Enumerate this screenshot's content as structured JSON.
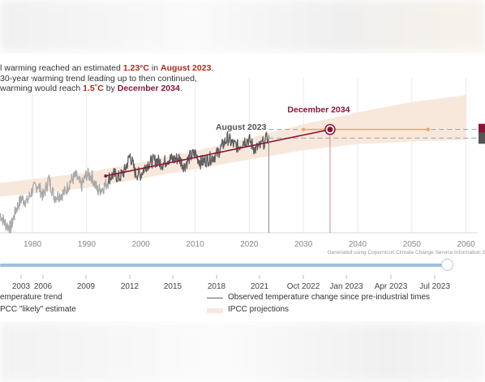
{
  "intro": {
    "line1_a": "l warming reached an estimated ",
    "line1_value": "1.23°C",
    "line1_b": " in ",
    "line1_date": "August 2023",
    "line1_c": ".",
    "line2": "30-year warming trend leading up to then continued,",
    "line3_a": " warming would reach ",
    "line3_value": "1.5˚C",
    "line3_b": " by ",
    "line3_date": "December 2034",
    "line3_c": "."
  },
  "annotations": {
    "august_label": "August 2023",
    "december_label": "December 2034",
    "attribution": "Generated using Copernicus Climate Change Service Information 2"
  },
  "colors": {
    "observed": "#5f5f5f",
    "observed_pre": "#a9a9a9",
    "trend": "#8a1538",
    "band": "#f8e8dc",
    "forecast": "#f0a860",
    "accent_dark": "#8a1538"
  },
  "date_slider": {
    "labels": [
      "2003",
      "2006",
      "2009",
      "2012",
      "2015",
      "2018",
      "2021",
      "Oct 2022",
      "Jan 2023",
      "Apr 2023",
      "Jul 2023"
    ],
    "value_fraction": 1.0
  },
  "legend": {
    "trend": "emperature trend",
    "likely": "PCC \"likely\" estimate",
    "observed": "Observed temperature change since pre-industrial times",
    "projections": "IPCC projections"
  },
  "chart_data": {
    "type": "line",
    "x_axis": {
      "range": [
        1974,
        2062
      ],
      "ticks": [
        1980,
        1990,
        2000,
        2010,
        2020,
        2030,
        2040,
        2050,
        2060
      ]
    },
    "y_axis": {
      "range": [
        0.3,
        2.1
      ],
      "grid": true
    },
    "series": [
      {
        "role": "observed-before-1994",
        "x": [
          1974,
          1975,
          1976,
          1977,
          1978,
          1979,
          1980,
          1981,
          1982,
          1983,
          1984,
          1985,
          1986,
          1987,
          1988,
          1989,
          1990,
          1991,
          1992,
          1993,
          1994
        ],
        "y": [
          0.52,
          0.4,
          0.36,
          0.58,
          0.7,
          0.66,
          0.8,
          0.86,
          0.72,
          0.93,
          0.72,
          0.74,
          0.77,
          0.9,
          0.96,
          0.84,
          0.98,
          0.95,
          0.79,
          0.82,
          0.9
        ]
      },
      {
        "role": "observed",
        "x": [
          1994,
          1995,
          1996,
          1997,
          1998,
          1999,
          2000,
          2001,
          2002,
          2003,
          2004,
          2005,
          2006,
          2007,
          2008,
          2009,
          2010,
          2011,
          2012,
          2013,
          2014,
          2015,
          2016,
          2017,
          2018,
          2019,
          2020,
          2021,
          2022,
          2023.6
        ],
        "y": [
          0.93,
          0.98,
          0.94,
          1.02,
          1.2,
          0.99,
          0.98,
          1.09,
          1.13,
          1.14,
          1.1,
          1.16,
          1.15,
          1.17,
          1.07,
          1.18,
          1.22,
          1.12,
          1.14,
          1.17,
          1.21,
          1.31,
          1.4,
          1.33,
          1.3,
          1.37,
          1.38,
          1.27,
          1.3,
          1.42
        ]
      },
      {
        "role": "trend",
        "x": [
          1993.5,
          2034.9
        ],
        "y": [
          0.96,
          1.5
        ]
      },
      {
        "role": "forecast",
        "x": [
          2030,
          2035,
          2053
        ],
        "y": [
          1.5,
          1.5,
          1.5
        ]
      }
    ],
    "reference_lines": [
      {
        "y": 1.5,
        "style": "dashed"
      },
      {
        "y": 1.4,
        "style": "dashed"
      }
    ],
    "markers": [
      {
        "x": 2023.6,
        "y": 1.42,
        "label": "August 2023"
      },
      {
        "x": 2034.9,
        "y": 1.5,
        "label": "December 2034"
      }
    ],
    "band": {
      "x": [
        1974,
        1990,
        2000,
        2010,
        2020,
        2030,
        2040,
        2050,
        2060
      ],
      "low": [
        0.72,
        0.82,
        0.93,
        1.04,
        1.15,
        1.26,
        1.33,
        1.36,
        1.38
      ],
      "high": [
        0.88,
        1.0,
        1.12,
        1.25,
        1.4,
        1.56,
        1.7,
        1.82,
        1.9
      ]
    }
  }
}
